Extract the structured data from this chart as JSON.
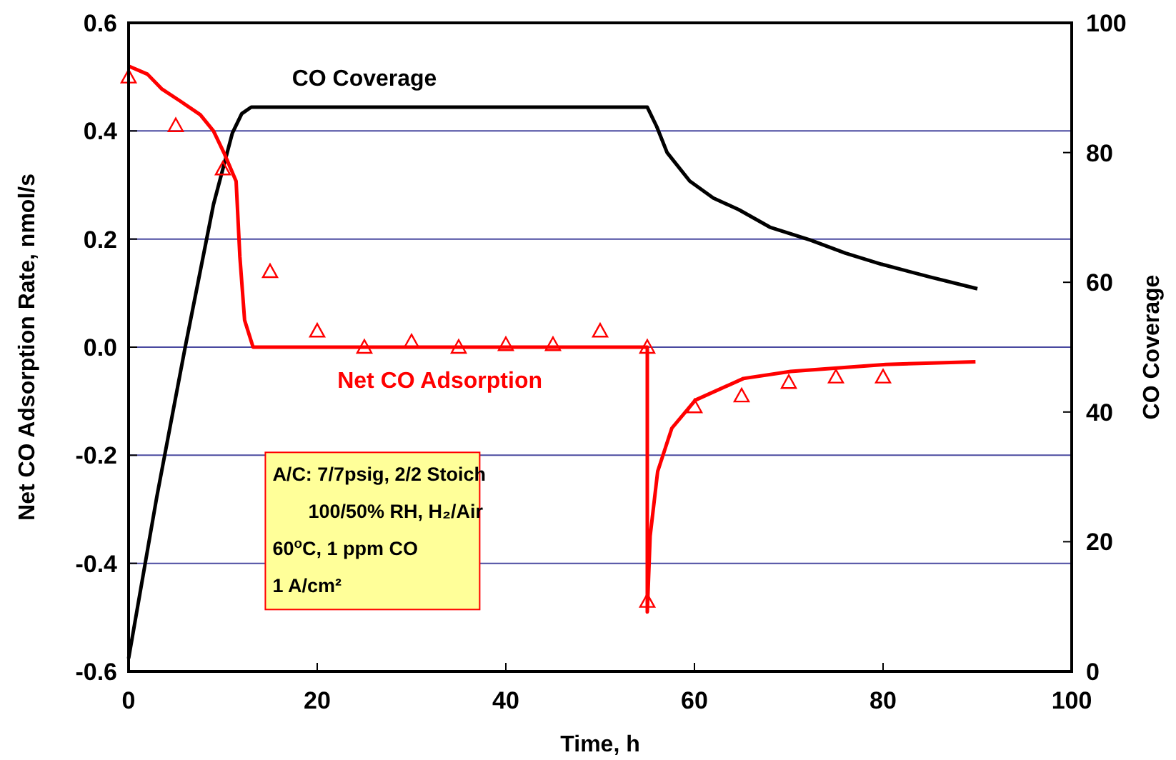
{
  "chart_data": {
    "type": "line",
    "xlabel": "Time, h",
    "ylabel": "Net CO Adsorption Rate, nmol/s",
    "y2label": "CO Coverage",
    "xlim": [
      0,
      100
    ],
    "xticks": [
      0,
      20,
      40,
      60,
      80,
      100
    ],
    "ylim": [
      -0.6,
      0.6
    ],
    "yticks": [
      -0.6,
      -0.4,
      -0.2,
      {
        "value": 0,
        "label": "0.0"
      },
      0.2,
      0.4,
      0.6
    ],
    "y2lim": [
      0,
      100
    ],
    "y2ticks": [
      0,
      20,
      40,
      60,
      80,
      100
    ],
    "grid": "y",
    "line_style": "solid",
    "series": [
      {
        "name": "CO Coverage",
        "color": "#000000",
        "axis": "y2",
        "marker": "none",
        "x": [
          0,
          3,
          6,
          9,
          11,
          12,
          13,
          55,
          56,
          57.1,
          59.5,
          62,
          64.7,
          68,
          72.3,
          76,
          79.8,
          85,
          90
        ],
        "values": [
          2,
          27,
          50,
          72,
          83,
          86,
          87,
          87,
          84,
          80,
          75.6,
          73,
          71.2,
          68.5,
          66.5,
          64.5,
          62.8,
          60.8,
          59
        ]
      },
      {
        "name": "Net CO Adsorption",
        "color": "#ff0000",
        "marker": "none",
        "x": [
          0,
          2,
          3.5,
          5.5,
          7.6,
          9,
          10.1,
          11.4,
          11.8,
          12.3,
          13.2,
          30,
          55,
          55,
          55.3,
          56.1,
          57.6,
          60.1,
          65.2,
          70.2,
          80.3,
          89.8
        ],
        "values": [
          0.52,
          0.505,
          0.478,
          0.455,
          0.43,
          0.4,
          0.36,
          0.307,
          0.167,
          0.05,
          0,
          0,
          0,
          -0.49,
          -0.35,
          -0.23,
          -0.15,
          -0.098,
          -0.058,
          -0.045,
          -0.032,
          -0.027
        ]
      },
      {
        "type": "scatter",
        "color": "#ff0000",
        "marker": "triangle",
        "x": [
          0,
          5,
          10,
          15,
          20,
          25,
          30,
          35,
          40,
          45,
          50,
          55,
          55,
          60,
          65,
          70,
          75,
          80
        ],
        "values": [
          0.5,
          0.41,
          0.33,
          0.14,
          0.03,
          0,
          0.01,
          0,
          0.005,
          0.005,
          0.03,
          0,
          -0.47,
          -0.11,
          -0.09,
          -0.065,
          -0.055,
          -0.055
        ]
      }
    ],
    "annotations": [
      "A/C: 7/7psig, 2/2 Stoich",
      "100/50% RH, H₂/Air",
      "60$^{o}$C, 1 ppm CO",
      "1 A/cm²"
    ]
  }
}
